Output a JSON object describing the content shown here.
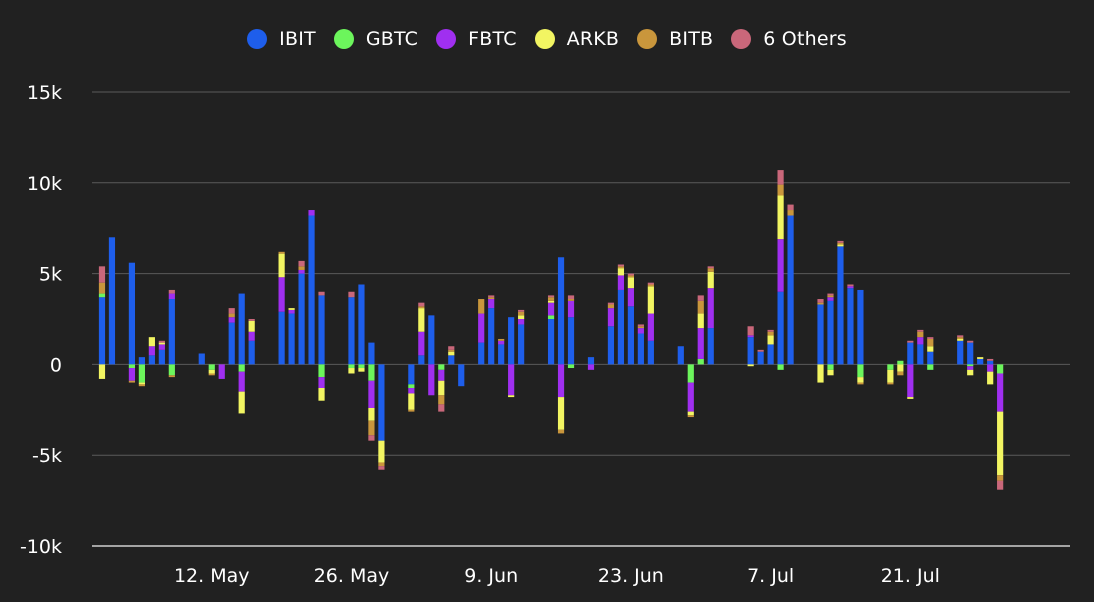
{
  "chart_data": {
    "type": "bar",
    "stacked": true,
    "title": "",
    "xlabel": "",
    "ylabel": "",
    "ylim": [
      -10000,
      15000
    ],
    "yticks": [
      15000,
      10000,
      5000,
      0,
      -5000,
      -10000
    ],
    "ytick_labels": [
      "15k",
      "10k",
      "5k",
      "0",
      "-5k",
      "-10k"
    ],
    "xticks": [
      {
        "date": "2024-05-12",
        "label": "12. May"
      },
      {
        "date": "2024-05-26",
        "label": "26. May"
      },
      {
        "date": "2024-06-09",
        "label": "9. Jun"
      },
      {
        "date": "2024-06-23",
        "label": "23. Jun"
      },
      {
        "date": "2024-07-07",
        "label": "7. Jul"
      },
      {
        "date": "2024-07-21",
        "label": "21. Jul"
      }
    ],
    "xrange": [
      "2024-04-30",
      "2024-08-06"
    ],
    "grid": true,
    "legend_position": "top-center",
    "series_order": [
      "IBIT",
      "GBTC",
      "FBTC",
      "ARKB",
      "BITB",
      "6 Others"
    ],
    "series_colors": {
      "IBIT": "#1e5eeb",
      "GBTC": "#6cf55c",
      "FBTC": "#a02ff0",
      "ARKB": "#f2f562",
      "BITB": "#c9963c",
      "6 Others": "#c9677a"
    },
    "days": [
      {
        "date": "2024-05-01",
        "IBIT": 3700,
        "GBTC": 200,
        "FBTC": 0,
        "ARKB": -800,
        "BITB": 600,
        "6 Others": 900
      },
      {
        "date": "2024-05-02",
        "IBIT": 7000
      },
      {
        "date": "2024-05-04",
        "IBIT": 5600,
        "GBTC": -200,
        "FBTC": -700,
        "BITB": -100
      },
      {
        "date": "2024-05-05",
        "IBIT": 400,
        "GBTC": -1000,
        "ARKB": -100,
        "BITB": -100
      },
      {
        "date": "2024-05-06",
        "IBIT": 500,
        "FBTC": 500,
        "ARKB": 500
      },
      {
        "date": "2024-05-07",
        "IBIT": 800,
        "FBTC": 300,
        "ARKB": 100,
        "6 Others": 100
      },
      {
        "date": "2024-05-08",
        "IBIT": 3600,
        "GBTC": -600,
        "FBTC": 300,
        "BITB": -100,
        "6 Others": 200
      },
      {
        "date": "2024-05-11",
        "IBIT": 600
      },
      {
        "date": "2024-05-12",
        "GBTC": -300,
        "ARKB": -200,
        "BITB": -100
      },
      {
        "date": "2024-05-13",
        "FBTC": -800
      },
      {
        "date": "2024-05-14",
        "IBIT": 2300,
        "FBTC": 300,
        "BITB": 200,
        "6 Others": 300
      },
      {
        "date": "2024-05-15",
        "IBIT": 3900,
        "GBTC": -400,
        "FBTC": -1100,
        "ARKB": -1200
      },
      {
        "date": "2024-05-16",
        "IBIT": 1300,
        "FBTC": 500,
        "ARKB": 600,
        "6 Others": 100
      },
      {
        "date": "2024-05-19",
        "IBIT": 2900,
        "FBTC": 1900,
        "ARKB": 1300,
        "BITB": 100
      },
      {
        "date": "2024-05-20",
        "IBIT": 2800,
        "FBTC": 200,
        "ARKB": 100
      },
      {
        "date": "2024-05-21",
        "IBIT": 5000,
        "FBTC": 200,
        "BITB": 200,
        "6 Others": 300
      },
      {
        "date": "2024-05-22",
        "IBIT": 8200,
        "FBTC": 300
      },
      {
        "date": "2024-05-23",
        "IBIT": 3800,
        "GBTC": -700,
        "FBTC": -600,
        "ARKB": -700,
        "6 Others": 200
      },
      {
        "date": "2024-05-26",
        "IBIT": 3700,
        "GBTC": -200,
        "ARKB": -300,
        "6 Others": 300
      },
      {
        "date": "2024-05-27",
        "IBIT": 4400,
        "GBTC": -200,
        "ARKB": -200
      },
      {
        "date": "2024-05-28",
        "IBIT": 1200,
        "GBTC": -900,
        "FBTC": -1500,
        "ARKB": -700,
        "BITB": -800,
        "6 Others": -300
      },
      {
        "date": "2024-05-29",
        "IBIT": -4200,
        "ARKB": -1200,
        "BITB": -200,
        "6 Others": -200
      },
      {
        "date": "2024-06-01",
        "IBIT": -1100,
        "GBTC": -200,
        "FBTC": -300,
        "ARKB": -900,
        "BITB": -100
      },
      {
        "date": "2024-06-02",
        "IBIT": 500,
        "FBTC": 1300,
        "ARKB": 1300,
        "BITB": 100,
        "6 Others": 200
      },
      {
        "date": "2024-06-03",
        "IBIT": 2700,
        "FBTC": -1700
      },
      {
        "date": "2024-06-04",
        "IBIT": 0,
        "GBTC": -300,
        "FBTC": -600,
        "ARKB": -800,
        "BITB": -500,
        "6 Others": -400
      },
      {
        "date": "2024-06-05",
        "IBIT": 500,
        "ARKB": 200,
        "BITB": 100,
        "6 Others": 200
      },
      {
        "date": "2024-06-06",
        "IBIT": -1200
      },
      {
        "date": "2024-06-08",
        "IBIT": 1200,
        "FBTC": 1600,
        "BITB": 800
      },
      {
        "date": "2024-06-09",
        "IBIT": 3100,
        "FBTC": 500,
        "BITB": 100,
        "6 Others": 100
      },
      {
        "date": "2024-06-10",
        "IBIT": 1100,
        "FBTC": 200,
        "BITB": 100
      },
      {
        "date": "2024-06-11",
        "IBIT": 2600,
        "FBTC": -1700,
        "ARKB": -100
      },
      {
        "date": "2024-06-12",
        "IBIT": 2200,
        "FBTC": 300,
        "ARKB": 200,
        "BITB": 200,
        "6 Others": 100
      },
      {
        "date": "2024-06-15",
        "IBIT": 2500,
        "GBTC": 200,
        "FBTC": 700,
        "ARKB": 100,
        "BITB": 200,
        "6 Others": 100
      },
      {
        "date": "2024-06-16",
        "IBIT": 5900,
        "FBTC": -1800,
        "ARKB": -1800,
        "BITB": -200
      },
      {
        "date": "2024-06-17",
        "IBIT": 2600,
        "GBTC": -200,
        "FBTC": 900,
        "BITB": 100,
        "6 Others": 200
      },
      {
        "date": "2024-06-19",
        "IBIT": 400,
        "FBTC": -300
      },
      {
        "date": "2024-06-21",
        "IBIT": 2100,
        "FBTC": 1000,
        "BITB": 200,
        "6 Others": 100
      },
      {
        "date": "2024-06-22",
        "IBIT": 4100,
        "FBTC": 800,
        "ARKB": 400,
        "BITB": 100,
        "6 Others": 100
      },
      {
        "date": "2024-06-23",
        "IBIT": 3200,
        "FBTC": 1000,
        "ARKB": 600,
        "BITB": 100,
        "6 Others": 100
      },
      {
        "date": "2024-06-24",
        "IBIT": 1700,
        "FBTC": 300,
        "BITB": 100,
        "6 Others": 100
      },
      {
        "date": "2024-06-25",
        "IBIT": 1300,
        "FBTC": 1500,
        "ARKB": 1500,
        "BITB": 100,
        "6 Others": 100
      },
      {
        "date": "2024-06-28",
        "IBIT": 1000
      },
      {
        "date": "2024-06-29",
        "GBTC": -1000,
        "FBTC": -1600,
        "ARKB": -200,
        "BITB": -100
      },
      {
        "date": "2024-06-30",
        "IBIT": 0,
        "GBTC": 300,
        "FBTC": 1700,
        "ARKB": 800,
        "BITB": 700,
        "6 Others": 300
      },
      {
        "date": "2024-07-01",
        "IBIT": 2000,
        "FBTC": 2200,
        "ARKB": 900,
        "BITB": 200,
        "6 Others": 100
      },
      {
        "date": "2024-07-05",
        "IBIT": 1500,
        "ARKB": -100,
        "6 Others": 500,
        "FBTC": 100
      },
      {
        "date": "2024-07-06",
        "IBIT": 700,
        "6 Others": 100
      },
      {
        "date": "2024-07-07",
        "IBIT": 1100,
        "ARKB": 500,
        "BITB": 200,
        "6 Others": 100
      },
      {
        "date": "2024-07-08",
        "IBIT": 4000,
        "GBTC": -300,
        "FBTC": 2900,
        "ARKB": 2400,
        "BITB": 600,
        "6 Others": 800
      },
      {
        "date": "2024-07-09",
        "IBIT": 8200,
        "BITB": 300,
        "6 Others": 300
      },
      {
        "date": "2024-07-12",
        "IBIT": 3300,
        "ARKB": -1000,
        "BITB": 100,
        "6 Others": 200
      },
      {
        "date": "2024-07-13",
        "IBIT": 3500,
        "GBTC": -300,
        "FBTC": 200,
        "ARKB": -300,
        "BITB": 100,
        "6 Others": 100
      },
      {
        "date": "2024-07-14",
        "IBIT": 6500,
        "ARKB": 100,
        "BITB": 100,
        "6 Others": 100
      },
      {
        "date": "2024-07-15",
        "IBIT": 4200,
        "FBTC": 100,
        "6 Others": 100
      },
      {
        "date": "2024-07-16",
        "IBIT": 4100,
        "GBTC": -700,
        "ARKB": -300,
        "BITB": -100
      },
      {
        "date": "2024-07-19",
        "GBTC": -300,
        "ARKB": -700,
        "BITB": -100
      },
      {
        "date": "2024-07-20",
        "GBTC": 200,
        "ARKB": -400,
        "BITB": -200
      },
      {
        "date": "2024-07-21",
        "IBIT": 1200,
        "FBTC": -1800,
        "ARKB": -100,
        "6 Others": 100
      },
      {
        "date": "2024-07-22",
        "IBIT": 1100,
        "FBTC": 400,
        "BITB": 300,
        "6 Others": 100
      },
      {
        "date": "2024-07-23",
        "IBIT": 700,
        "GBTC": -300,
        "ARKB": 300,
        "BITB": 400,
        "6 Others": 100
      },
      {
        "date": "2024-07-26",
        "IBIT": 1300,
        "ARKB": 100,
        "BITB": 100,
        "6 Others": 100
      },
      {
        "date": "2024-07-27",
        "IBIT": 1200,
        "GBTC": -100,
        "FBTC": -200,
        "ARKB": -300,
        "6 Others": 100
      },
      {
        "date": "2024-07-28",
        "IBIT": 300,
        "ARKB": 100
      },
      {
        "date": "2024-07-29",
        "IBIT": 200,
        "FBTC": -400,
        "ARKB": -700,
        "6 Others": 100
      },
      {
        "date": "2024-07-30",
        "IBIT": 0,
        "GBTC": -500,
        "FBTC": -2100,
        "ARKB": -3500,
        "BITB": -300,
        "6 Others": -500
      }
    ]
  }
}
